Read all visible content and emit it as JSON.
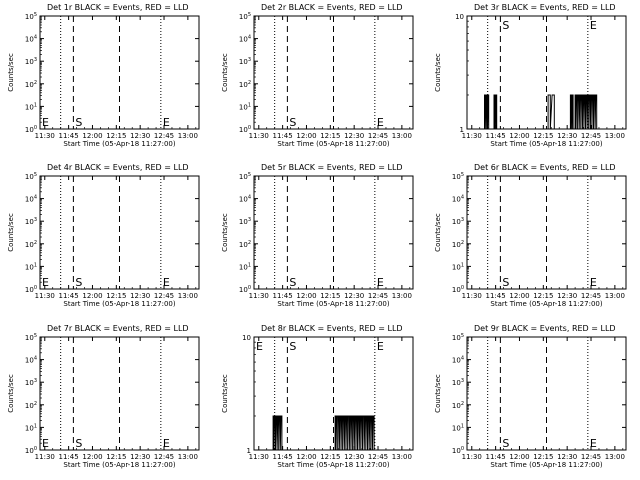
{
  "figure": {
    "x_tick_labels": [
      "11:30",
      "11:45",
      "12:00",
      "12:15",
      "12:30",
      "12:45",
      "13:00"
    ],
    "colors": {
      "events": "#000000",
      "lld": "#ff0000",
      "background": "#ffffff"
    }
  },
  "chart_data": [
    {
      "type": "line",
      "title": "Det 1r BLACK = Events, RED = LLD",
      "xlabel": "Start Time (05-Apr-18 11:27:00)",
      "ylabel": "Counts/sec",
      "yscale": "log",
      "ylim": [
        1,
        100000
      ],
      "y_tick_labels": [
        "10^0",
        "10^1",
        "10^2",
        "10^3",
        "10^4",
        "10^5"
      ],
      "xlim": [
        "11:27",
        "13:07"
      ],
      "x_tick_labels": [
        "11:30",
        "11:45",
        "12:00",
        "12:15",
        "12:30",
        "12:45",
        "13:00"
      ],
      "grid": false,
      "vlines": [
        {
          "time": "11:40",
          "style": "dotted"
        },
        {
          "time": "11:48",
          "style": "dashed"
        },
        {
          "time": "12:17",
          "style": "dashed"
        },
        {
          "time": "12:43",
          "style": "dotted"
        }
      ],
      "markers": [
        {
          "text": "E",
          "time": "11:27",
          "level": "low"
        },
        {
          "text": "S",
          "time": "11:48",
          "level": "low"
        },
        {
          "text": "E",
          "time": "12:43",
          "level": "low"
        }
      ],
      "series": [
        {
          "name": "Events",
          "color": "#000000",
          "segments": []
        },
        {
          "name": "LLD",
          "color": "#ff0000",
          "segments": []
        }
      ]
    },
    {
      "type": "line",
      "title": "Det 2r BLACK = Events, RED = LLD",
      "xlabel": "Start Time (05-Apr-18 11:27:00)",
      "ylabel": "Counts/sec",
      "yscale": "log",
      "ylim": [
        1,
        100000
      ],
      "y_tick_labels": [
        "10^0",
        "10^1",
        "10^2",
        "10^3",
        "10^4",
        "10^5"
      ],
      "xlim": [
        "11:27",
        "13:07"
      ],
      "x_tick_labels": [
        "11:30",
        "11:45",
        "12:00",
        "12:15",
        "12:30",
        "12:45",
        "13:00"
      ],
      "grid": false,
      "vlines": [
        {
          "time": "11:40",
          "style": "dotted"
        },
        {
          "time": "11:48",
          "style": "dashed"
        },
        {
          "time": "12:17",
          "style": "dashed"
        },
        {
          "time": "12:43",
          "style": "dotted"
        }
      ],
      "markers": [
        {
          "text": "S",
          "time": "11:48",
          "level": "low"
        },
        {
          "text": "E",
          "time": "12:43",
          "level": "low"
        }
      ],
      "series": [
        {
          "name": "Events",
          "color": "#000000",
          "segments": []
        },
        {
          "name": "LLD",
          "color": "#ff0000",
          "segments": []
        }
      ]
    },
    {
      "type": "line",
      "title": "Det 3r BLACK = Events, RED = LLD",
      "xlabel": "Start Time (05-Apr-18 11:27:00)",
      "ylabel": "Counts/sec",
      "yscale": "log",
      "ylim": [
        1,
        10
      ],
      "y_tick_labels": [
        "1",
        "10"
      ],
      "xlim": [
        "11:27",
        "13:07"
      ],
      "x_tick_labels": [
        "11:30",
        "11:45",
        "12:00",
        "12:15",
        "12:30",
        "12:45",
        "13:00"
      ],
      "grid": false,
      "vlines": [
        {
          "time": "11:40",
          "style": "dotted"
        },
        {
          "time": "11:48",
          "style": "dashed"
        },
        {
          "time": "12:17",
          "style": "dashed"
        },
        {
          "time": "12:43",
          "style": "dotted"
        }
      ],
      "markers": [
        {
          "text": "S",
          "time": "11:48",
          "level": "high"
        },
        {
          "text": "E",
          "time": "12:43",
          "level": "high"
        }
      ],
      "series": [
        {
          "name": "Events",
          "color": "#000000",
          "segments": [
            {
              "start": "11:38",
              "end": "11:41",
              "value": 2,
              "bars": 4
            },
            {
              "start": "11:44",
              "end": "11:46",
              "value": 2,
              "bars": 3
            },
            {
              "start": "12:18",
              "end": "12:23",
              "value": 2,
              "bars": 2
            },
            {
              "start": "12:32",
              "end": "12:34",
              "value": 2,
              "bars": 3
            },
            {
              "start": "12:35",
              "end": "12:49",
              "value": 2,
              "bars": 14
            }
          ]
        },
        {
          "name": "LLD",
          "color": "#ff0000",
          "segments": []
        }
      ]
    },
    {
      "type": "line",
      "title": "Det 4r BLACK = Events, RED = LLD",
      "xlabel": "Start Time (05-Apr-18 11:27:00)",
      "ylabel": "Counts/sec",
      "yscale": "log",
      "ylim": [
        1,
        100000
      ],
      "y_tick_labels": [
        "10^0",
        "10^1",
        "10^2",
        "10^3",
        "10^4",
        "10^5"
      ],
      "xlim": [
        "11:27",
        "13:07"
      ],
      "x_tick_labels": [
        "11:30",
        "11:45",
        "12:00",
        "12:15",
        "12:30",
        "12:45",
        "13:00"
      ],
      "grid": false,
      "vlines": [
        {
          "time": "11:40",
          "style": "dotted"
        },
        {
          "time": "11:48",
          "style": "dashed"
        },
        {
          "time": "12:17",
          "style": "dashed"
        },
        {
          "time": "12:43",
          "style": "dotted"
        }
      ],
      "markers": [
        {
          "text": "E",
          "time": "11:27",
          "level": "low"
        },
        {
          "text": "S",
          "time": "11:48",
          "level": "low"
        },
        {
          "text": "E",
          "time": "12:43",
          "level": "low"
        }
      ],
      "series": [
        {
          "name": "Events",
          "color": "#000000",
          "segments": []
        },
        {
          "name": "LLD",
          "color": "#ff0000",
          "segments": []
        }
      ]
    },
    {
      "type": "line",
      "title": "Det 5r BLACK = Events, RED = LLD",
      "xlabel": "Start Time (05-Apr-18 11:27:00)",
      "ylabel": "Counts/sec",
      "yscale": "log",
      "ylim": [
        1,
        100000
      ],
      "y_tick_labels": [
        "10^0",
        "10^1",
        "10^2",
        "10^3",
        "10^4",
        "10^5"
      ],
      "xlim": [
        "11:27",
        "13:07"
      ],
      "x_tick_labels": [
        "11:30",
        "11:45",
        "12:00",
        "12:15",
        "12:30",
        "12:45",
        "13:00"
      ],
      "grid": false,
      "vlines": [
        {
          "time": "11:40",
          "style": "dotted"
        },
        {
          "time": "11:48",
          "style": "dashed"
        },
        {
          "time": "12:17",
          "style": "dashed"
        },
        {
          "time": "12:43",
          "style": "dotted"
        }
      ],
      "markers": [
        {
          "text": "S",
          "time": "11:48",
          "level": "low"
        },
        {
          "text": "E",
          "time": "12:43",
          "level": "low"
        }
      ],
      "series": [
        {
          "name": "Events",
          "color": "#000000",
          "segments": []
        },
        {
          "name": "LLD",
          "color": "#ff0000",
          "segments": []
        }
      ]
    },
    {
      "type": "line",
      "title": "Det 6r BLACK = Events, RED = LLD",
      "xlabel": "Start Time (05-Apr-18 11:27:00)",
      "ylabel": "Counts/sec",
      "yscale": "log",
      "ylim": [
        1,
        100000
      ],
      "y_tick_labels": [
        "10^0",
        "10^1",
        "10^2",
        "10^3",
        "10^4",
        "10^5"
      ],
      "xlim": [
        "11:27",
        "13:07"
      ],
      "x_tick_labels": [
        "11:30",
        "11:45",
        "12:00",
        "12:15",
        "12:30",
        "12:45",
        "13:00"
      ],
      "grid": false,
      "vlines": [
        {
          "time": "11:40",
          "style": "dotted"
        },
        {
          "time": "11:48",
          "style": "dashed"
        },
        {
          "time": "12:17",
          "style": "dashed"
        },
        {
          "time": "12:43",
          "style": "dotted"
        }
      ],
      "markers": [
        {
          "text": "S",
          "time": "11:48",
          "level": "low"
        },
        {
          "text": "E",
          "time": "12:43",
          "level": "low"
        }
      ],
      "series": [
        {
          "name": "Events",
          "color": "#000000",
          "segments": []
        },
        {
          "name": "LLD",
          "color": "#ff0000",
          "segments": []
        }
      ]
    },
    {
      "type": "line",
      "title": "Det 7r BLACK = Events, RED = LLD",
      "xlabel": "Start Time (05-Apr-18 11:27:00)",
      "ylabel": "Counts/sec",
      "yscale": "log",
      "ylim": [
        1,
        100000
      ],
      "y_tick_labels": [
        "10^0",
        "10^1",
        "10^2",
        "10^3",
        "10^4",
        "10^5"
      ],
      "xlim": [
        "11:27",
        "13:07"
      ],
      "x_tick_labels": [
        "11:30",
        "11:45",
        "12:00",
        "12:15",
        "12:30",
        "12:45",
        "13:00"
      ],
      "grid": false,
      "vlines": [
        {
          "time": "11:40",
          "style": "dotted"
        },
        {
          "time": "11:48",
          "style": "dashed"
        },
        {
          "time": "12:17",
          "style": "dashed"
        },
        {
          "time": "12:43",
          "style": "dotted"
        }
      ],
      "markers": [
        {
          "text": "E",
          "time": "11:27",
          "level": "low"
        },
        {
          "text": "S",
          "time": "11:48",
          "level": "low"
        },
        {
          "text": "E",
          "time": "12:43",
          "level": "low"
        }
      ],
      "series": [
        {
          "name": "Events",
          "color": "#000000",
          "segments": []
        },
        {
          "name": "LLD",
          "color": "#ff0000",
          "segments": []
        }
      ]
    },
    {
      "type": "line",
      "title": "Det 8r BLACK = Events, RED = LLD",
      "xlabel": "Start Time (05-Apr-18 11:27:00)",
      "ylabel": "Counts/sec",
      "yscale": "log",
      "ylim": [
        1,
        10
      ],
      "y_tick_labels": [
        "1",
        "10"
      ],
      "xlim": [
        "11:27",
        "13:07"
      ],
      "x_tick_labels": [
        "11:30",
        "11:45",
        "12:00",
        "12:15",
        "12:30",
        "12:45",
        "13:00"
      ],
      "grid": false,
      "vlines": [
        {
          "time": "11:40",
          "style": "dotted"
        },
        {
          "time": "11:48",
          "style": "dashed"
        },
        {
          "time": "12:17",
          "style": "dashed"
        },
        {
          "time": "12:43",
          "style": "dotted"
        }
      ],
      "markers": [
        {
          "text": "E",
          "time": "11:27",
          "level": "high"
        },
        {
          "text": "S",
          "time": "11:48",
          "level": "high"
        },
        {
          "text": "E",
          "time": "12:43",
          "level": "high"
        }
      ],
      "series": [
        {
          "name": "Events",
          "color": "#000000",
          "segments": [
            {
              "start": "11:39",
              "end": "11:45",
              "value": 2,
              "bars": 6
            },
            {
              "start": "12:18",
              "end": "12:43",
              "value": 2,
              "bars": 24
            }
          ]
        },
        {
          "name": "LLD",
          "color": "#ff0000",
          "segments": []
        }
      ]
    },
    {
      "type": "line",
      "title": "Det 9r BLACK = Events, RED = LLD",
      "xlabel": "Start Time (05-Apr-18 11:27:00)",
      "ylabel": "Counts/sec",
      "yscale": "log",
      "ylim": [
        1,
        100000
      ],
      "y_tick_labels": [
        "10^0",
        "10^1",
        "10^2",
        "10^3",
        "10^4",
        "10^5"
      ],
      "xlim": [
        "11:27",
        "13:07"
      ],
      "x_tick_labels": [
        "11:30",
        "11:45",
        "12:00",
        "12:15",
        "12:30",
        "12:45",
        "13:00"
      ],
      "grid": false,
      "vlines": [
        {
          "time": "11:40",
          "style": "dotted"
        },
        {
          "time": "11:48",
          "style": "dashed"
        },
        {
          "time": "12:17",
          "style": "dashed"
        },
        {
          "time": "12:43",
          "style": "dotted"
        }
      ],
      "markers": [
        {
          "text": "S",
          "time": "11:48",
          "level": "low"
        },
        {
          "text": "E",
          "time": "12:43",
          "level": "low"
        }
      ],
      "series": [
        {
          "name": "Events",
          "color": "#000000",
          "segments": []
        },
        {
          "name": "LLD",
          "color": "#ff0000",
          "segments": []
        }
      ]
    }
  ]
}
